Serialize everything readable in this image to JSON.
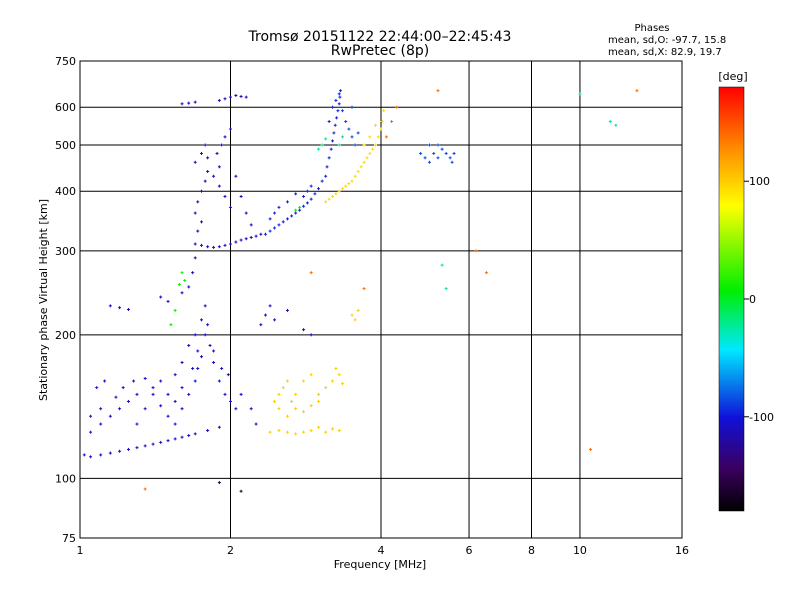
{
  "chart_data": {
    "type": "scatter",
    "title": "Tromsø 20151122 22:44:00–22:45:43",
    "subtitle": "RwPretec (8p)",
    "xlabel": "Frequency [MHz]",
    "ylabel": "Stationary phase Virtual Height [km]",
    "x_scale": "log",
    "y_scale": "log",
    "xlim": [
      1,
      16
    ],
    "ylim": [
      75,
      750
    ],
    "grid": true,
    "xticks": [
      "1",
      "2",
      "4",
      "6",
      "8",
      "10",
      "16"
    ],
    "xtick_values": [
      1,
      2,
      4,
      6,
      8,
      10,
      16
    ],
    "yticks": [
      "75",
      "100",
      "200",
      "300",
      "400",
      "500",
      "600",
      "750"
    ],
    "ytick_values": [
      75,
      100,
      200,
      300,
      400,
      500,
      600,
      750
    ],
    "phase_stats": {
      "title": "Phases",
      "line1": "mean, sd,O: -97.7, 15.8",
      "line2": "mean, sd,X:  82.9, 19.7"
    },
    "colorbar": {
      "label": "[deg]",
      "range": [
        -180,
        180
      ],
      "ticks": [
        "100",
        "0",
        "-100"
      ],
      "tick_values": [
        100,
        0,
        -100
      ]
    },
    "series": [
      {
        "color_deg": -105,
        "points": [
          [
            1.02,
            112
          ],
          [
            1.05,
            111
          ],
          [
            1.1,
            112
          ],
          [
            1.15,
            113
          ],
          [
            1.2,
            114
          ],
          [
            1.25,
            115
          ],
          [
            1.3,
            116
          ],
          [
            1.35,
            117
          ],
          [
            1.4,
            118
          ],
          [
            1.45,
            119
          ],
          [
            1.5,
            120
          ],
          [
            1.55,
            121
          ],
          [
            1.6,
            122
          ],
          [
            1.65,
            123
          ],
          [
            1.7,
            124
          ],
          [
            1.8,
            126
          ],
          [
            1.9,
            128
          ],
          [
            1.05,
            125
          ],
          [
            1.1,
            130
          ],
          [
            1.15,
            135
          ],
          [
            1.2,
            140
          ],
          [
            1.25,
            145
          ],
          [
            1.3,
            150
          ],
          [
            1.08,
            155
          ],
          [
            1.12,
            160
          ],
          [
            1.18,
            148
          ],
          [
            1.22,
            155
          ],
          [
            1.28,
            160
          ],
          [
            1.35,
            162
          ],
          [
            1.4,
            150
          ],
          [
            1.45,
            142
          ],
          [
            1.5,
            135
          ],
          [
            1.55,
            130
          ],
          [
            1.6,
            140
          ],
          [
            1.65,
            150
          ],
          [
            1.7,
            160
          ],
          [
            1.72,
            170
          ],
          [
            1.75,
            180
          ],
          [
            1.6,
            175
          ],
          [
            1.55,
            165
          ],
          [
            1.65,
            190
          ],
          [
            1.7,
            200
          ],
          [
            1.75,
            215
          ],
          [
            1.78,
            230
          ],
          [
            1.82,
            190
          ],
          [
            1.85,
            175
          ],
          [
            1.9,
            160
          ],
          [
            1.95,
            150
          ],
          [
            2.0,
            145
          ],
          [
            2.05,
            140
          ],
          [
            1.05,
            135
          ],
          [
            1.1,
            140
          ],
          [
            1.3,
            130
          ],
          [
            1.35,
            140
          ],
          [
            1.4,
            155
          ],
          [
            1.45,
            160
          ],
          [
            1.5,
            150
          ],
          [
            1.55,
            145
          ],
          [
            1.6,
            155
          ],
          [
            1.68,
            170
          ],
          [
            1.72,
            185
          ],
          [
            1.78,
            200
          ],
          [
            1.8,
            210
          ],
          [
            1.85,
            185
          ],
          [
            1.92,
            170
          ],
          [
            1.98,
            165
          ],
          [
            2.1,
            150
          ],
          [
            2.2,
            140
          ],
          [
            2.25,
            130
          ],
          [
            1.15,
            230
          ],
          [
            1.2,
            228
          ],
          [
            1.25,
            226
          ],
          [
            1.45,
            240
          ],
          [
            1.5,
            235
          ],
          [
            1.6,
            245
          ],
          [
            1.65,
            252
          ],
          [
            1.68,
            270
          ],
          [
            1.7,
            290
          ],
          [
            2.3,
            210
          ],
          [
            2.35,
            220
          ],
          [
            2.4,
            230
          ],
          [
            2.45,
            215
          ],
          [
            2.6,
            225
          ],
          [
            2.8,
            205
          ],
          [
            2.9,
            200
          ]
        ]
      },
      {
        "color_deg": -110,
        "points": [
          [
            1.7,
            310
          ],
          [
            1.75,
            308
          ],
          [
            1.8,
            306
          ],
          [
            1.85,
            305
          ],
          [
            1.9,
            306
          ],
          [
            1.95,
            308
          ],
          [
            2.0,
            310
          ],
          [
            2.05,
            313
          ],
          [
            2.1,
            316
          ],
          [
            2.15,
            318
          ],
          [
            2.2,
            320
          ],
          [
            2.25,
            322
          ],
          [
            2.3,
            325
          ],
          [
            1.72,
            330
          ],
          [
            1.75,
            345
          ],
          [
            1.7,
            360
          ],
          [
            1.72,
            380
          ],
          [
            1.75,
            400
          ],
          [
            1.78,
            420
          ],
          [
            1.8,
            440
          ],
          [
            1.7,
            460
          ],
          [
            1.75,
            480
          ],
          [
            1.78,
            500
          ],
          [
            1.8,
            470
          ],
          [
            1.85,
            430
          ],
          [
            1.9,
            410
          ],
          [
            1.95,
            390
          ],
          [
            2.0,
            370
          ],
          [
            1.9,
            450
          ],
          [
            1.88,
            480
          ],
          [
            1.92,
            500
          ],
          [
            1.95,
            520
          ],
          [
            2.0,
            540
          ],
          [
            2.05,
            430
          ],
          [
            2.1,
            390
          ],
          [
            2.15,
            360
          ],
          [
            2.2,
            340
          ],
          [
            1.6,
            610
          ],
          [
            1.65,
            612
          ],
          [
            1.7,
            615
          ],
          [
            1.9,
            620
          ],
          [
            1.95,
            625
          ],
          [
            2.0,
            630
          ],
          [
            2.05,
            635
          ],
          [
            2.1,
            632
          ],
          [
            2.15,
            630
          ]
        ]
      },
      {
        "color_deg": -95,
        "points": [
          [
            2.35,
            325
          ],
          [
            2.4,
            330
          ],
          [
            2.45,
            335
          ],
          [
            2.5,
            340
          ],
          [
            2.55,
            345
          ],
          [
            2.6,
            350
          ],
          [
            2.65,
            355
          ],
          [
            2.7,
            360
          ],
          [
            2.75,
            365
          ],
          [
            2.8,
            372
          ],
          [
            2.85,
            378
          ],
          [
            2.9,
            385
          ],
          [
            2.95,
            395
          ],
          [
            3.0,
            405
          ],
          [
            3.05,
            420
          ],
          [
            2.8,
            390
          ],
          [
            2.85,
            400
          ],
          [
            2.9,
            410
          ],
          [
            2.7,
            395
          ],
          [
            2.6,
            380
          ],
          [
            2.5,
            370
          ],
          [
            2.45,
            360
          ],
          [
            2.4,
            350
          ],
          [
            3.1,
            430
          ],
          [
            3.12,
            450
          ],
          [
            3.15,
            470
          ],
          [
            3.18,
            490
          ],
          [
            3.2,
            510
          ],
          [
            3.22,
            530
          ],
          [
            3.24,
            550
          ],
          [
            3.26,
            570
          ],
          [
            3.28,
            590
          ],
          [
            3.3,
            610
          ],
          [
            3.31,
            630
          ],
          [
            3.32,
            650
          ],
          [
            3.15,
            560
          ],
          [
            3.2,
            600
          ],
          [
            3.25,
            620
          ],
          [
            3.3,
            640
          ]
        ]
      },
      {
        "color_deg": -85,
        "points": [
          [
            3.45,
            540
          ],
          [
            3.5,
            520
          ],
          [
            3.55,
            500
          ],
          [
            3.6,
            530
          ],
          [
            3.4,
            560
          ],
          [
            3.35,
            590
          ],
          [
            3.5,
            600
          ],
          [
            4.8,
            480
          ],
          [
            4.9,
            470
          ],
          [
            5.0,
            460
          ],
          [
            5.1,
            480
          ],
          [
            5.2,
            470
          ],
          [
            5.3,
            490
          ],
          [
            5.4,
            480
          ],
          [
            5.5,
            470
          ],
          [
            5.55,
            460
          ],
          [
            5.6,
            480
          ],
          [
            5.0,
            500
          ],
          [
            5.2,
            500
          ]
        ]
      },
      {
        "color_deg": 95,
        "points": [
          [
            3.1,
            380
          ],
          [
            3.15,
            385
          ],
          [
            3.2,
            390
          ],
          [
            3.25,
            395
          ],
          [
            3.3,
            400
          ],
          [
            3.35,
            405
          ],
          [
            3.4,
            410
          ],
          [
            3.45,
            415
          ],
          [
            3.5,
            420
          ],
          [
            3.55,
            430
          ],
          [
            3.6,
            440
          ],
          [
            3.65,
            450
          ],
          [
            3.7,
            460
          ],
          [
            3.75,
            470
          ],
          [
            3.8,
            480
          ],
          [
            3.85,
            490
          ],
          [
            3.9,
            500
          ],
          [
            3.95,
            520
          ],
          [
            4.0,
            540
          ],
          [
            4.02,
            560
          ],
          [
            4.05,
            590
          ],
          [
            3.7,
            500
          ],
          [
            3.8,
            520
          ],
          [
            3.9,
            550
          ]
        ]
      },
      {
        "color_deg": 100,
        "points": [
          [
            2.4,
            125
          ],
          [
            2.5,
            126
          ],
          [
            2.6,
            125
          ],
          [
            2.7,
            124
          ],
          [
            2.8,
            125
          ],
          [
            2.9,
            126
          ],
          [
            3.0,
            128
          ],
          [
            3.1,
            125
          ],
          [
            3.2,
            127
          ],
          [
            3.3,
            126
          ],
          [
            2.45,
            145
          ],
          [
            2.5,
            150
          ],
          [
            2.55,
            155
          ],
          [
            2.6,
            160
          ],
          [
            2.65,
            145
          ],
          [
            2.7,
            150
          ],
          [
            2.8,
            160
          ],
          [
            2.9,
            165
          ],
          [
            3.0,
            150
          ],
          [
            3.1,
            155
          ],
          [
            3.2,
            160
          ],
          [
            3.25,
            170
          ],
          [
            3.3,
            165
          ],
          [
            3.35,
            158
          ],
          [
            2.5,
            140
          ],
          [
            2.6,
            135
          ],
          [
            2.7,
            140
          ],
          [
            2.8,
            138
          ],
          [
            2.9,
            142
          ],
          [
            3.0,
            145
          ],
          [
            3.5,
            220
          ],
          [
            3.55,
            215
          ],
          [
            3.6,
            225
          ]
        ]
      },
      {
        "color_deg": 10,
        "points": [
          [
            1.52,
            210
          ],
          [
            1.55,
            225
          ],
          [
            1.58,
            255
          ],
          [
            1.6,
            270
          ],
          [
            1.62,
            260
          ],
          [
            2.7,
            365
          ],
          [
            2.75,
            370
          ]
        ]
      },
      {
        "color_deg": -20,
        "points": [
          [
            3.0,
            490
          ],
          [
            3.05,
            500
          ],
          [
            3.1,
            515
          ],
          [
            3.3,
            500
          ],
          [
            3.35,
            520
          ],
          [
            5.3,
            280
          ],
          [
            5.4,
            250
          ],
          [
            10.0,
            640
          ],
          [
            11.5,
            560
          ],
          [
            11.8,
            550
          ]
        ]
      },
      {
        "color_deg": 140,
        "points": [
          [
            4.1,
            520
          ],
          [
            4.2,
            560
          ],
          [
            4.3,
            600
          ],
          [
            5.2,
            650
          ],
          [
            2.9,
            270
          ],
          [
            3.7,
            250
          ],
          [
            6.2,
            300
          ],
          [
            6.5,
            270
          ],
          [
            1.35,
            95
          ],
          [
            13.0,
            650
          ],
          [
            10.5,
            115
          ]
        ]
      },
      {
        "color_deg": -160,
        "points": [
          [
            1.9,
            98
          ],
          [
            2.1,
            94
          ]
        ]
      }
    ]
  }
}
